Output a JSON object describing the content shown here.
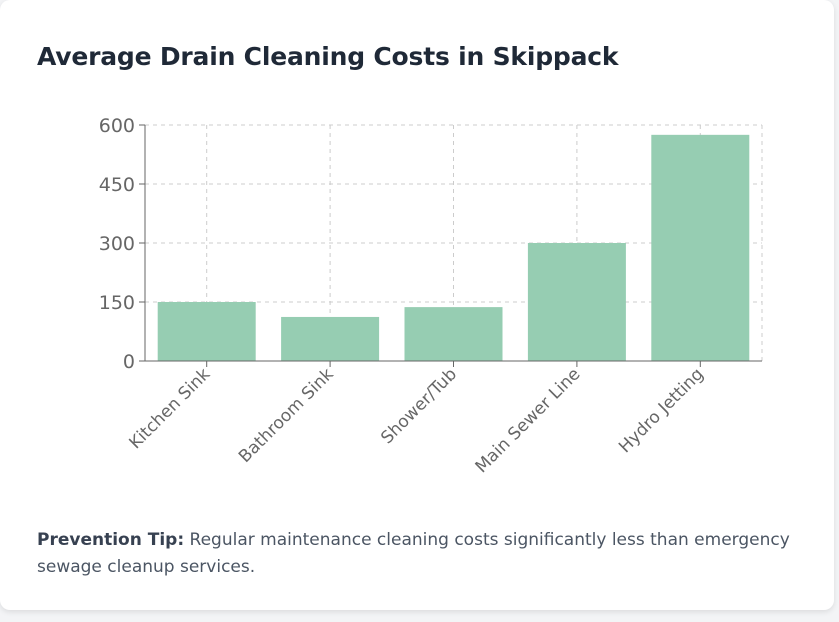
{
  "title": "Average Drain Cleaning Costs in Skippack",
  "colors": {
    "bar": "#96cdb2",
    "grid": "#cccccc",
    "axis": "#666666"
  },
  "chart_data": {
    "type": "bar",
    "categories": [
      "Kitchen Sink",
      "Bathroom Sink",
      "Shower/Tub",
      "Main Sewer Line",
      "Hydro Jetting"
    ],
    "values": [
      150,
      112,
      137,
      300,
      575
    ],
    "yticks": [
      0,
      150,
      300,
      450,
      600
    ],
    "ylim": [
      0,
      600
    ],
    "grid": true,
    "title": "",
    "xlabel": "",
    "ylabel": ""
  },
  "tip": {
    "label": "Prevention Tip:",
    "text": " Regular maintenance cleaning costs significantly less than emergency sewage cleanup services."
  }
}
